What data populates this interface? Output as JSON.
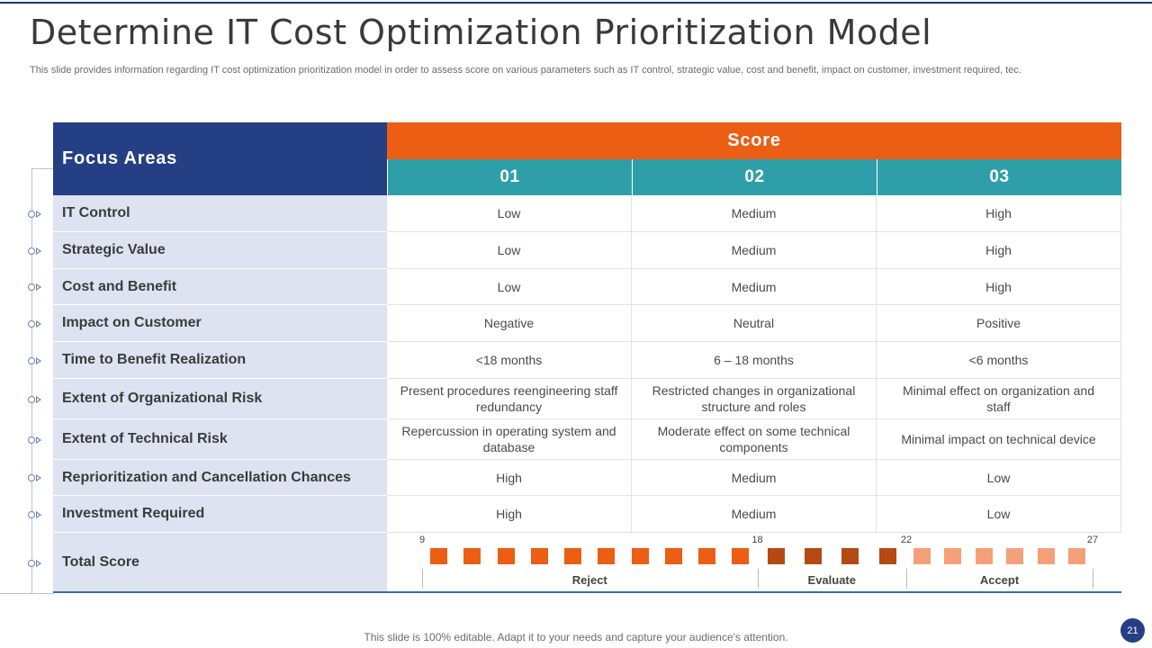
{
  "slide": {
    "title": "Determine IT Cost Optimization Prioritization Model",
    "subtitle": "This slide provides information regarding IT cost optimization prioritization model in order to assess score on various parameters such as IT control, strategic value, cost and benefit, impact on customer, investment required, tec.",
    "footer": "This slide is 100% editable. Adapt it to your needs and capture your audience's attention.",
    "page_number": "21"
  },
  "table": {
    "focus_header": "Focus Areas",
    "score_header": "Score",
    "columns": [
      "01",
      "02",
      "03"
    ],
    "rows": [
      {
        "label": "IT Control",
        "values": [
          "Low",
          "Medium",
          "High"
        ]
      },
      {
        "label": "Strategic Value",
        "values": [
          "Low",
          "Medium",
          "High"
        ]
      },
      {
        "label": "Cost and Benefit",
        "values": [
          "Low",
          "Medium",
          "High"
        ]
      },
      {
        "label": "Impact on Customer",
        "values": [
          "Negative",
          "Neutral",
          "Positive"
        ]
      },
      {
        "label": "Time to Benefit Realization",
        "values": [
          "<18 months",
          "6 – 18 months",
          "<6 months"
        ]
      },
      {
        "label": "Extent of Organizational Risk",
        "values": [
          "Present procedures reengineering staff redundancy",
          "Restricted changes in organizational structure and roles",
          "Minimal effect on organization and staff"
        ]
      },
      {
        "label": "Extent of Technical Risk",
        "values": [
          "Repercussion in operating system and database",
          "Moderate effect on some technical components",
          "Minimal impact on technical device"
        ]
      },
      {
        "label": "Reprioritization and Cancellation Chances",
        "values": [
          "High",
          "Medium",
          "Low"
        ]
      },
      {
        "label": "Investment Required",
        "values": [
          "High",
          "Medium",
          "Low"
        ]
      }
    ],
    "total": {
      "label": "Total Score",
      "ticks": [
        "9",
        "18",
        "22",
        "27"
      ],
      "bands": [
        {
          "label": "Reject",
          "from": 9,
          "to": 18,
          "color": "#eb5e14",
          "squares": 10
        },
        {
          "label": "Evaluate",
          "from": 18,
          "to": 22,
          "color": "#b44a12",
          "squares": 4
        },
        {
          "label": "Accept",
          "from": 22,
          "to": 27,
          "color": "#f3a07a",
          "squares": 6
        }
      ]
    }
  },
  "colors": {
    "navy": "#243f84",
    "orange": "#eb5e14",
    "teal": "#2e9fa9",
    "label_bg": "#dde3f1"
  }
}
